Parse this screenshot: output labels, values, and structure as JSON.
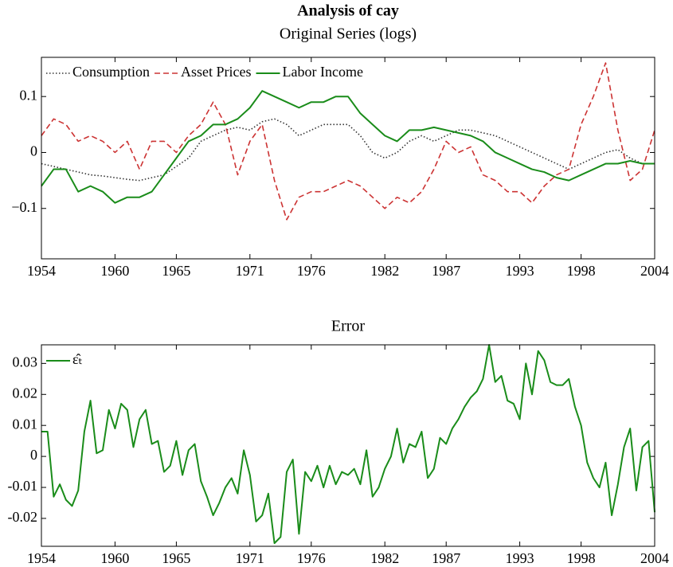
{
  "chart_data": [
    {
      "type": "line",
      "title": "Analysis of cay",
      "subtitle": "Original Series (logs)",
      "x": [
        1954,
        1955,
        1956,
        1957,
        1958,
        1959,
        1960,
        1961,
        1962,
        1963,
        1964,
        1965,
        1966,
        1967,
        1968,
        1969,
        1970,
        1971,
        1972,
        1973,
        1974,
        1975,
        1976,
        1977,
        1978,
        1979,
        1980,
        1981,
        1982,
        1983,
        1984,
        1985,
        1986,
        1987,
        1988,
        1989,
        1990,
        1991,
        1992,
        1993,
        1994,
        1995,
        1996,
        1997,
        1998,
        1999,
        2000,
        2001,
        2002,
        2003,
        2004
      ],
      "series": [
        {
          "name": "Consumption",
          "color": "#333333",
          "style": "dotted",
          "values": [
            -0.02,
            -0.025,
            -0.03,
            -0.035,
            -0.04,
            -0.042,
            -0.045,
            -0.048,
            -0.05,
            -0.045,
            -0.04,
            -0.025,
            -0.01,
            0.02,
            0.03,
            0.04,
            0.045,
            0.04,
            0.055,
            0.06,
            0.05,
            0.03,
            0.04,
            0.05,
            0.05,
            0.05,
            0.03,
            0.0,
            -0.01,
            0.0,
            0.02,
            0.03,
            0.02,
            0.03,
            0.04,
            0.04,
            0.035,
            0.03,
            0.02,
            0.01,
            0.0,
            -0.01,
            -0.02,
            -0.03,
            -0.02,
            -0.01,
            0.0,
            0.005,
            -0.01,
            -0.02,
            -0.02
          ]
        },
        {
          "name": "Asset Prices",
          "color": "#cc3333",
          "style": "dashed",
          "values": [
            0.03,
            0.06,
            0.05,
            0.02,
            0.03,
            0.02,
            0.0,
            0.02,
            -0.03,
            0.02,
            0.02,
            0.0,
            0.03,
            0.05,
            0.09,
            0.05,
            -0.04,
            0.02,
            0.05,
            -0.05,
            -0.12,
            -0.08,
            -0.07,
            -0.07,
            -0.06,
            -0.05,
            -0.06,
            -0.08,
            -0.1,
            -0.08,
            -0.09,
            -0.07,
            -0.03,
            0.02,
            0.0,
            0.01,
            -0.04,
            -0.05,
            -0.07,
            -0.07,
            -0.09,
            -0.06,
            -0.04,
            -0.03,
            0.05,
            0.1,
            0.16,
            0.04,
            -0.05,
            -0.03,
            0.04
          ]
        },
        {
          "name": "Labor Income",
          "color": "#1a8c1a",
          "style": "solid",
          "values": [
            -0.06,
            -0.03,
            -0.03,
            -0.07,
            -0.06,
            -0.07,
            -0.09,
            -0.08,
            -0.08,
            -0.07,
            -0.04,
            -0.01,
            0.02,
            0.03,
            0.05,
            0.05,
            0.06,
            0.08,
            0.11,
            0.1,
            0.09,
            0.08,
            0.09,
            0.09,
            0.1,
            0.1,
            0.07,
            0.05,
            0.03,
            0.02,
            0.04,
            0.04,
            0.045,
            0.04,
            0.035,
            0.03,
            0.02,
            0.0,
            -0.01,
            -0.02,
            -0.03,
            -0.035,
            -0.045,
            -0.05,
            -0.04,
            -0.03,
            -0.02,
            -0.02,
            -0.015,
            -0.02,
            -0.02
          ]
        }
      ],
      "xlim": [
        1954,
        2004
      ],
      "xticks": [
        1954,
        1960,
        1965,
        1971,
        1976,
        1982,
        1987,
        1993,
        1998,
        2004
      ],
      "ylim": [
        -0.19,
        0.17
      ],
      "yticks": [
        {
          "value": -0.1,
          "label": "−0.1"
        },
        0,
        0.1
      ],
      "legend": "top-left"
    },
    {
      "type": "line",
      "title": "Error",
      "x": [
        1954,
        1954.5,
        1955,
        1955.5,
        1956,
        1956.5,
        1957,
        1957.5,
        1958,
        1958.5,
        1959,
        1959.5,
        1960,
        1960.5,
        1961,
        1961.5,
        1962,
        1962.5,
        1963,
        1963.5,
        1964,
        1964.5,
        1965,
        1965.5,
        1966,
        1966.5,
        1967,
        1967.5,
        1968,
        1968.5,
        1969,
        1969.5,
        1970,
        1970.5,
        1971,
        1971.5,
        1972,
        1972.5,
        1973,
        1973.5,
        1974,
        1974.5,
        1975,
        1975.5,
        1976,
        1976.5,
        1977,
        1977.5,
        1978,
        1978.5,
        1979,
        1979.5,
        1980,
        1980.5,
        1981,
        1981.5,
        1982,
        1982.5,
        1983,
        1983.5,
        1984,
        1984.5,
        1985,
        1985.5,
        1986,
        1986.5,
        1987,
        1987.5,
        1988,
        1988.5,
        1989,
        1989.5,
        1990,
        1990.5,
        1991,
        1991.5,
        1992,
        1992.5,
        1993,
        1993.5,
        1994,
        1994.5,
        1995,
        1995.5,
        1996,
        1996.5,
        1997,
        1997.5,
        1998,
        1998.5,
        1999,
        1999.5,
        2000,
        2000.5,
        2001,
        2001.5,
        2002,
        2002.5,
        2003,
        2003.5,
        2004
      ],
      "series": [
        {
          "name": "ε̂ₜ",
          "color": "#1a8c1a",
          "style": "solid",
          "values": [
            0.008,
            0.008,
            -0.013,
            -0.009,
            -0.014,
            -0.016,
            -0.011,
            0.008,
            0.018,
            0.001,
            0.002,
            0.015,
            0.009,
            0.017,
            0.015,
            0.003,
            0.012,
            0.015,
            0.004,
            0.005,
            -0.005,
            -0.003,
            0.005,
            -0.006,
            0.002,
            0.004,
            -0.008,
            -0.013,
            -0.019,
            -0.015,
            -0.01,
            -0.007,
            -0.012,
            0.002,
            -0.006,
            -0.021,
            -0.019,
            -0.012,
            -0.028,
            -0.026,
            -0.005,
            -0.001,
            -0.025,
            -0.005,
            -0.008,
            -0.003,
            -0.01,
            -0.003,
            -0.009,
            -0.005,
            -0.006,
            -0.004,
            -0.009,
            0.002,
            -0.013,
            -0.01,
            -0.004,
            0.0,
            0.009,
            -0.002,
            0.004,
            0.003,
            0.008,
            -0.007,
            -0.004,
            0.006,
            0.004,
            0.009,
            0.012,
            0.016,
            0.019,
            0.021,
            0.025,
            0.036,
            0.024,
            0.026,
            0.018,
            0.017,
            0.012,
            0.03,
            0.02,
            0.034,
            0.031,
            0.024,
            0.023,
            0.023,
            0.025,
            0.016,
            0.01,
            -0.002,
            -0.007,
            -0.01,
            -0.002,
            -0.019,
            -0.009,
            0.003,
            0.009,
            -0.011,
            0.003,
            0.005,
            -0.018
          ]
        }
      ],
      "xlim": [
        1954,
        2004
      ],
      "xticks": [
        1954,
        1960,
        1965,
        1971,
        1976,
        1982,
        1987,
        1993,
        1998,
        2004
      ],
      "ylim": [
        -0.029,
        0.036
      ],
      "yticks": [
        -0.02,
        -0.01,
        0,
        0.01,
        0.02,
        0.03
      ],
      "legend": "top-left"
    }
  ]
}
